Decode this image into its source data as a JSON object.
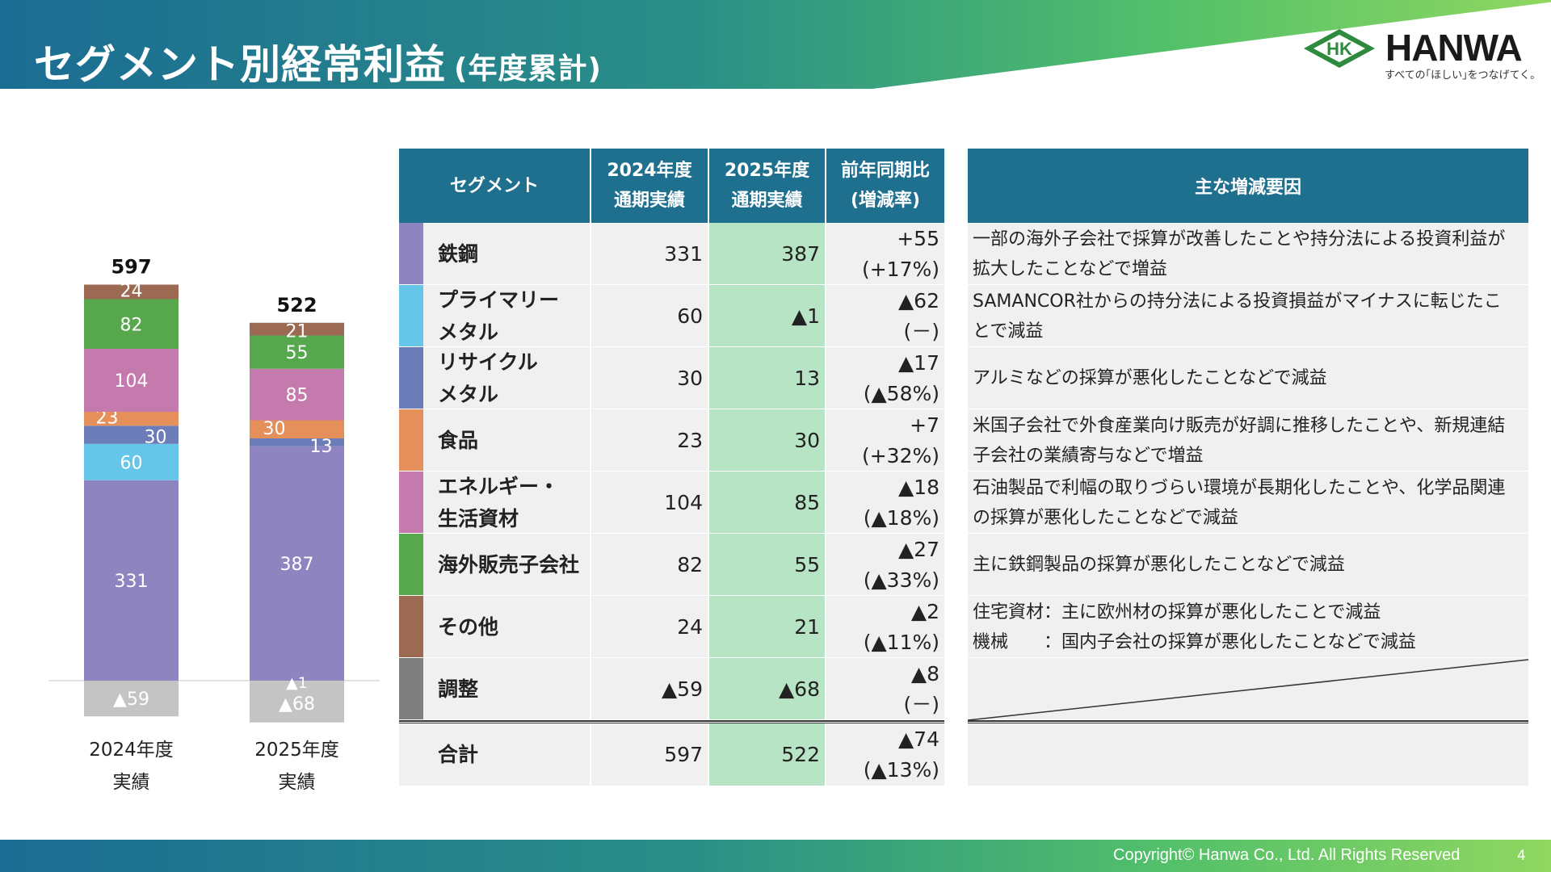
{
  "header": {
    "title": "セグメント別経常利益",
    "subtitle": "(年度累計)"
  },
  "logo": {
    "mark": "HK",
    "word": "HANWA",
    "tagline": "すべての｢ほしい｣をつなげてく。"
  },
  "colors": {
    "steel": "#8e85c0",
    "primary_metal": "#66c6ea",
    "recycle_metal": "#6b7cb8",
    "food": "#e58f5b",
    "energy": "#c57aae",
    "overseas": "#57a84d",
    "other": "#9c6a52",
    "adjust": "#7f7f7f",
    "negative": "#c4c4c4",
    "header_blue": "#1f6f8f",
    "highlight_green": "#b7e4c4"
  },
  "chart_data": {
    "type": "bar",
    "stacked": true,
    "categories": [
      "2024年度\n実績",
      "2025年度\n実績"
    ],
    "category_lines": [
      [
        "2024年度",
        "実績"
      ],
      [
        "2025年度",
        "実績"
      ]
    ],
    "totals": [
      "597",
      "522"
    ],
    "series": [
      {
        "name": "鉄鋼",
        "key": "steel",
        "values": [
          331,
          387
        ],
        "labels": [
          "331",
          "387"
        ]
      },
      {
        "name": "プライマリーメタル",
        "key": "primary_metal",
        "values": [
          60,
          -1
        ],
        "labels": [
          "60",
          "▲1"
        ]
      },
      {
        "name": "リサイクルメタル",
        "key": "recycle_metal",
        "values": [
          30,
          13
        ],
        "labels": [
          "30",
          "13"
        ]
      },
      {
        "name": "食品",
        "key": "food",
        "values": [
          23,
          30
        ],
        "labels": [
          "23",
          "30"
        ]
      },
      {
        "name": "エネルギー・生活資材",
        "key": "energy",
        "values": [
          104,
          85
        ],
        "labels": [
          "104",
          "85"
        ]
      },
      {
        "name": "海外販売子会社",
        "key": "overseas",
        "values": [
          82,
          55
        ],
        "labels": [
          "82",
          "55"
        ]
      },
      {
        "name": "その他",
        "key": "other",
        "values": [
          24,
          21
        ],
        "labels": [
          "24",
          "21"
        ]
      },
      {
        "name": "調整",
        "key": "adjust",
        "values": [
          -59,
          -68
        ],
        "labels": [
          "▲59",
          "▲68"
        ]
      }
    ]
  },
  "table": {
    "headers": {
      "segment": "セグメント",
      "y2024_line1": "2024年度",
      "y2024_line2": "通期実績",
      "y2025_line1": "2025年度",
      "y2025_line2": "通期実績",
      "yoy_line1": "前年同期比",
      "yoy_line2": "(増減率)"
    },
    "rows": [
      {
        "name_lines": [
          "鉄鋼"
        ],
        "color": "#8e85c0",
        "y2024": "331",
        "y2025": "387",
        "yoy": "+55",
        "rate": "(+17%)"
      },
      {
        "name_lines": [
          "プライマリー",
          "メタル"
        ],
        "color": "#66c6ea",
        "y2024": "60",
        "y2025": "▲1",
        "yoy": "▲62",
        "rate": "(－)"
      },
      {
        "name_lines": [
          "リサイクル",
          "メタル"
        ],
        "color": "#6b7cb8",
        "y2024": "30",
        "y2025": "13",
        "yoy": "▲17",
        "rate": "(▲58%)"
      },
      {
        "name_lines": [
          "食品"
        ],
        "color": "#e58f5b",
        "y2024": "23",
        "y2025": "30",
        "yoy": "+7",
        "rate": "(+32%)"
      },
      {
        "name_lines": [
          "エネルギー・",
          "生活資材"
        ],
        "color": "#c57aae",
        "y2024": "104",
        "y2025": "85",
        "yoy": "▲18",
        "rate": "(▲18%)"
      },
      {
        "name_lines": [
          "海外販売子会社"
        ],
        "color": "#57a84d",
        "y2024": "82",
        "y2025": "55",
        "yoy": "▲27",
        "rate": "(▲33%)"
      },
      {
        "name_lines": [
          "その他"
        ],
        "color": "#9c6a52",
        "y2024": "24",
        "y2025": "21",
        "yoy": "▲2",
        "rate": "(▲11%)"
      },
      {
        "name_lines": [
          "調整"
        ],
        "color": "#7f7f7f",
        "y2024": "▲59",
        "y2025": "▲68",
        "yoy": "▲8",
        "rate": "(－)"
      },
      {
        "name_lines": [
          "合計"
        ],
        "color": "",
        "y2024": "597",
        "y2025": "522",
        "yoy": "▲74",
        "rate": "(▲13%)"
      }
    ]
  },
  "reasons": {
    "header": "主な増減要因",
    "rows": [
      [
        "一部の海外子会社で採算が改善したことや持分法による投資利益が",
        "拡大したことなどで増益"
      ],
      [
        "SAMANCOR社からの持分法による投資損益がマイナスに転じたこ",
        "とで減益"
      ],
      [
        "アルミなどの採算が悪化したことなどで減益"
      ],
      [
        "米国子会社で外食産業向け販売が好調に推移したことや、新規連結",
        "子会社の業績寄与などで増益"
      ],
      [
        "石油製品で利幅の取りづらい環境が長期化したことや、化学品関連",
        "の採算が悪化したことなどで減益"
      ],
      [
        "主に鉄鋼製品の採算が悪化したことなどで減益"
      ],
      [
        "住宅資材：主に欧州材の採算が悪化したことで減益",
        "機械　　：国内子会社の採算が悪化したことなどで減益"
      ],
      [],
      []
    ]
  },
  "footer": {
    "copyright": "Copyright© Hanwa Co., Ltd. All Rights Reserved",
    "page": "4"
  }
}
